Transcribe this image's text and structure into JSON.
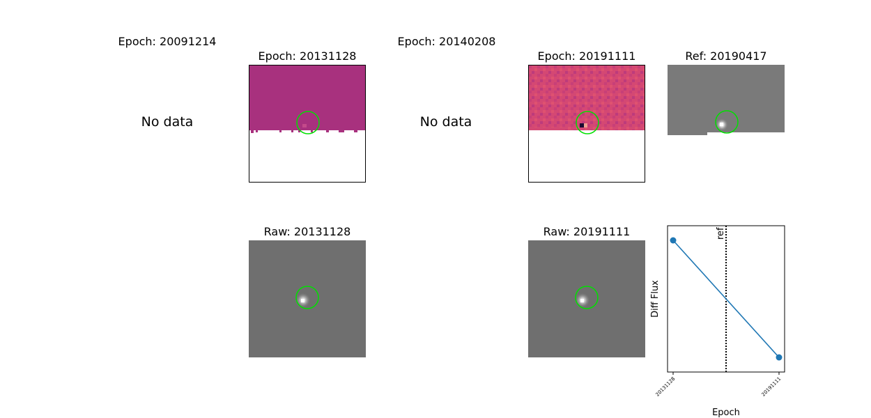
{
  "panels": {
    "epoch1": {
      "title": "Epoch: 20091214",
      "note": "No data"
    },
    "epoch2": {
      "title": "Epoch: 20131128"
    },
    "epoch3": {
      "title": "Epoch: 20140208",
      "note": "No data"
    },
    "epoch4": {
      "title": "Epoch: 20191111"
    },
    "ref": {
      "title": "Ref: 20190417"
    },
    "raw1": {
      "title": "Raw: 20131128"
    },
    "raw2": {
      "title": "Raw: 20191111"
    }
  },
  "colors": {
    "magenta_cutout": "#a8317e",
    "pink_cutout": "#d44873",
    "gray_bg": "#6f6f6f",
    "circle": "#00e000",
    "series": "#1f77b4"
  },
  "chart_data": {
    "type": "line",
    "x": [
      "20131128",
      "20191111"
    ],
    "series": [
      {
        "values": [
          0.9,
          0.1
        ]
      }
    ],
    "ylim": [
      0,
      1
    ],
    "xlabel": "Epoch",
    "ylabel": "Diff Flux",
    "vline": {
      "label": "ref",
      "position": "between-epochs",
      "style": "dotted"
    },
    "y_ticks": "none"
  }
}
